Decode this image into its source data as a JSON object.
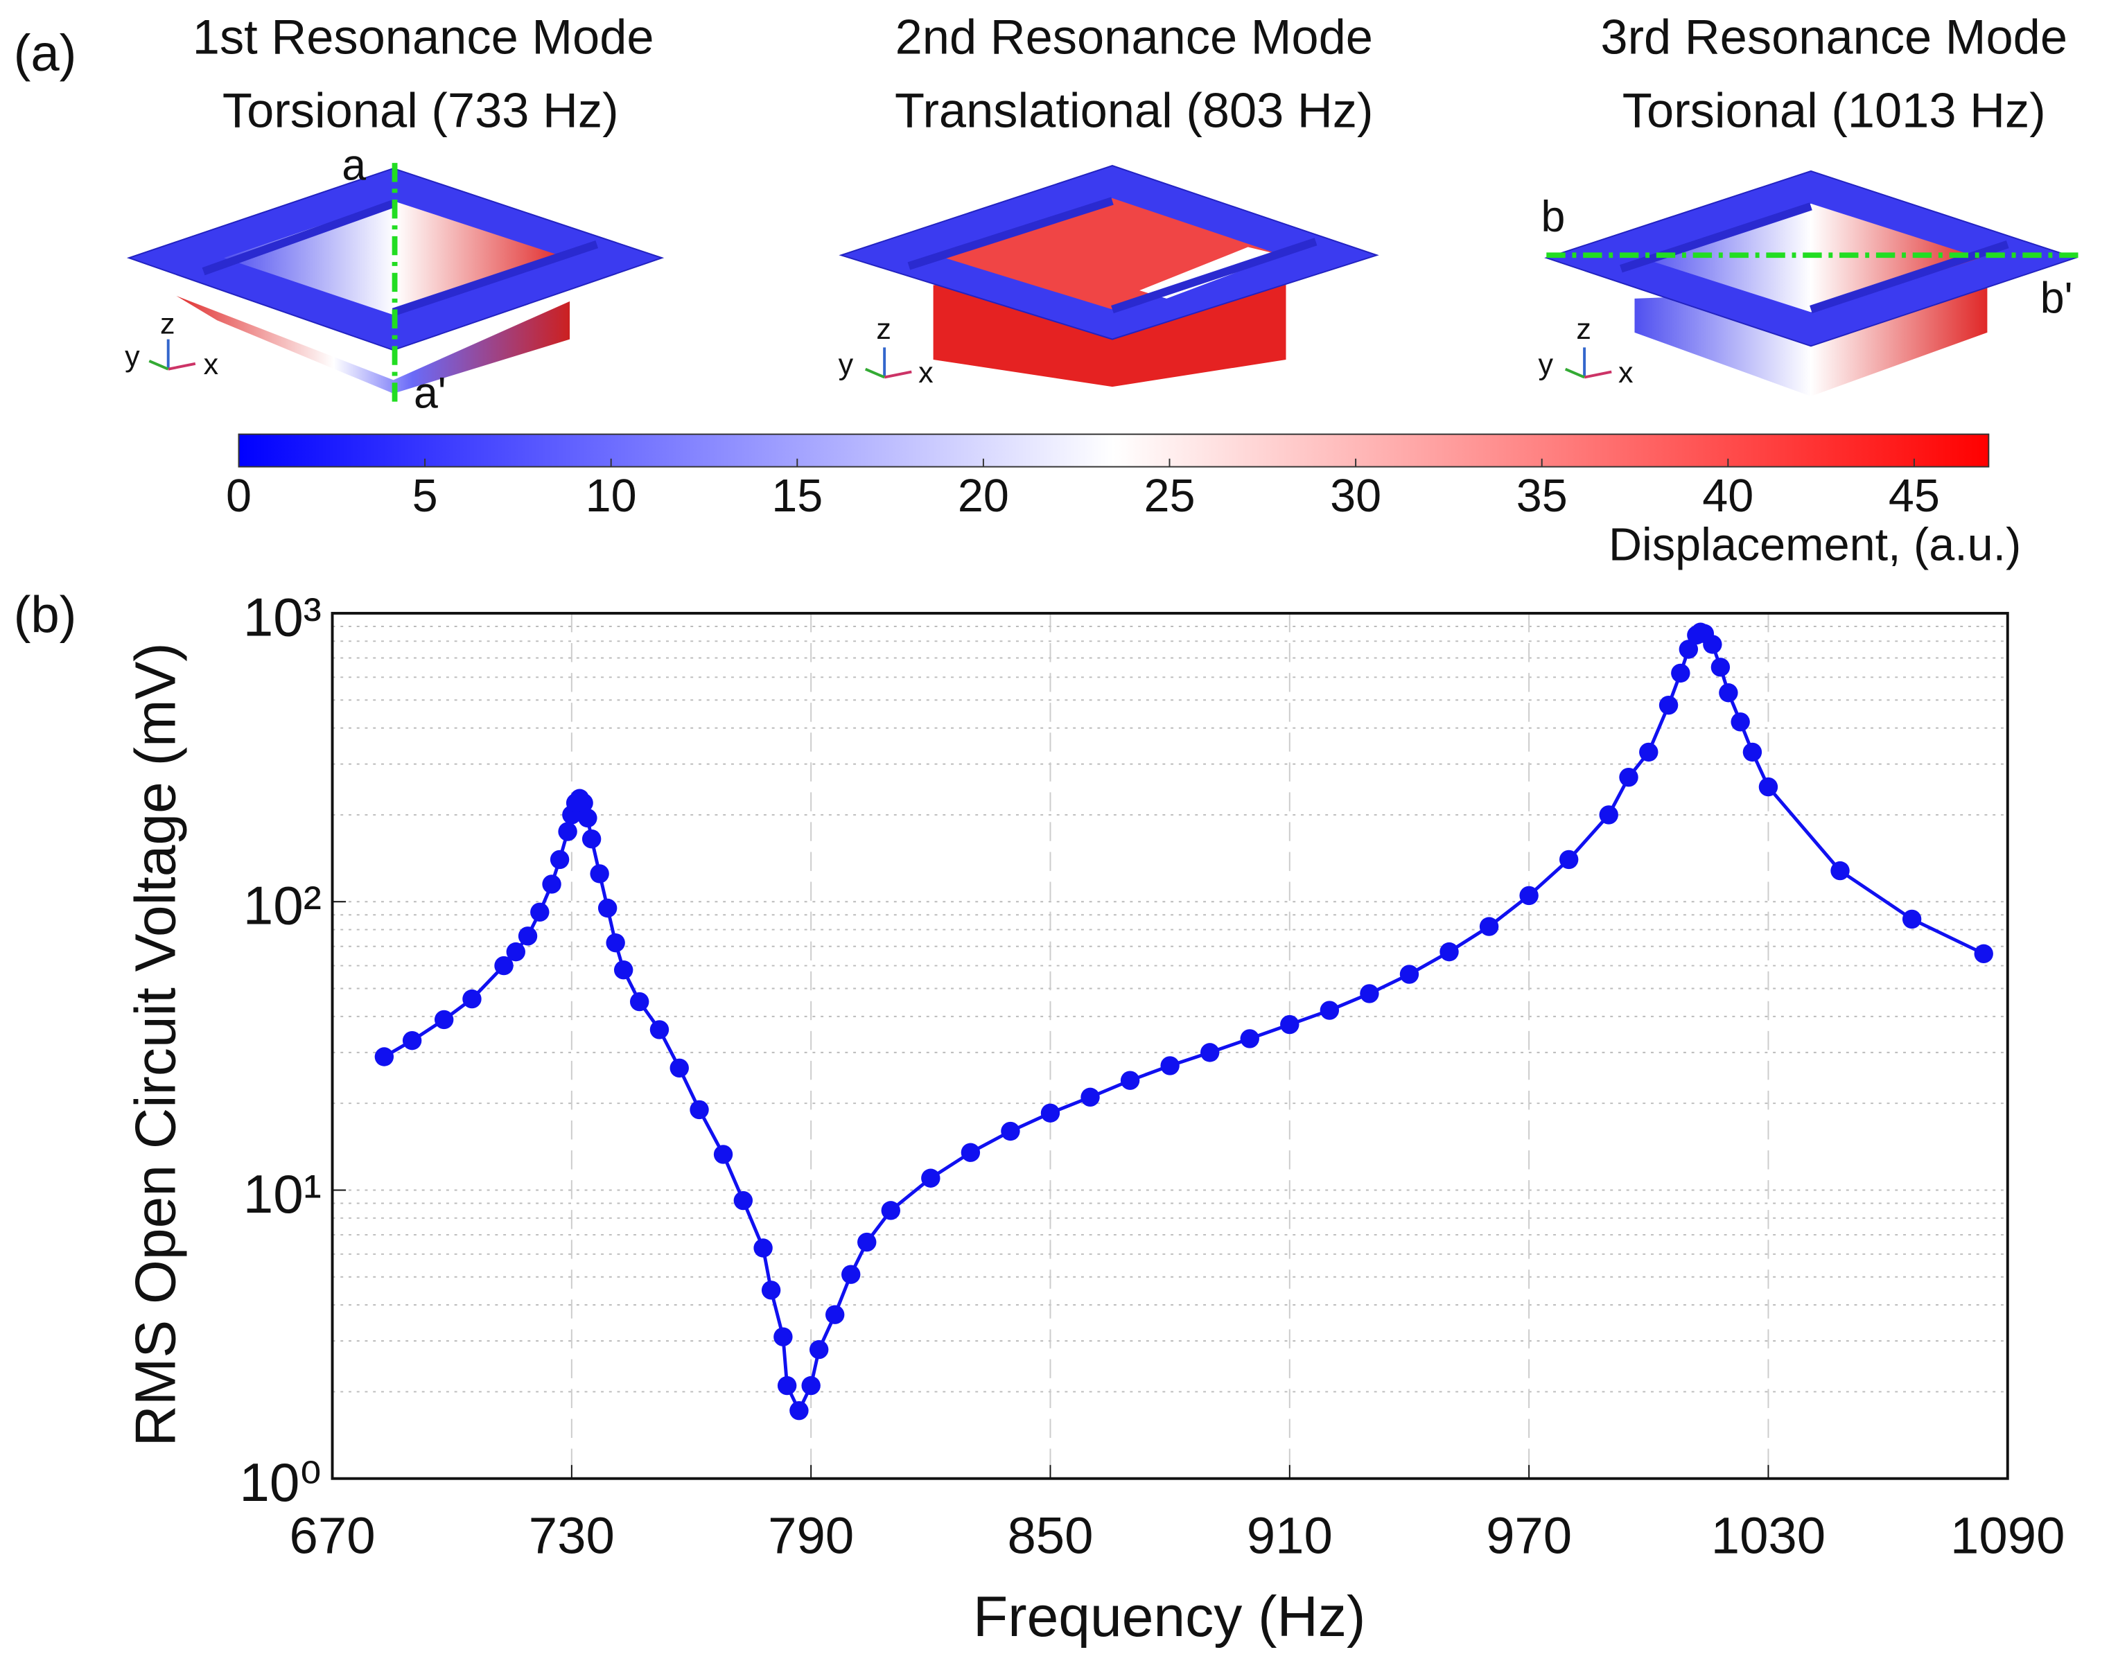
{
  "panel_a": {
    "label": "(a)",
    "modes": [
      {
        "title": "1st Resonance Mode",
        "subtitle": "Torsional (733 Hz)"
      },
      {
        "title": "2nd Resonance Mode",
        "subtitle": "Translational (803 Hz)"
      },
      {
        "title": "3rd Resonance Mode",
        "subtitle": "Torsional (1013 Hz)"
      }
    ],
    "section_labels": [
      "a",
      "a'",
      "b",
      "b'"
    ],
    "axis_triad": [
      "x",
      "y",
      "z"
    ],
    "colorbar": {
      "label": "Displacement, (a.u.)",
      "lim": [
        0,
        47
      ],
      "ticks": [
        0,
        5,
        10,
        15,
        20,
        25,
        30,
        35,
        40,
        45
      ]
    }
  },
  "chart_data": {
    "type": "line",
    "panel_label": "(b)",
    "x_label": "Frequency (Hz)",
    "y_label": "RMS Open Circuit Voltage (mV)",
    "xlim": [
      670,
      1090
    ],
    "xticks": [
      670,
      730,
      790,
      850,
      910,
      970,
      1030,
      1090
    ],
    "ylim": [
      1,
      1000
    ],
    "yticks": [
      {
        "value": 1,
        "label": "10⁰"
      },
      {
        "value": 10,
        "label": "10¹"
      },
      {
        "value": 100,
        "label": "10²"
      },
      {
        "value": 1000,
        "label": "10³"
      }
    ],
    "log_y": true,
    "grid": true,
    "series": [
      {
        "name": "RMS Open Circuit Voltage",
        "color": "#1010f0",
        "x": [
          683,
          690,
          698,
          705,
          713,
          716,
          719,
          722,
          725,
          727,
          729,
          730,
          731,
          732,
          733,
          734,
          735,
          737,
          739,
          741,
          743,
          747,
          752,
          757,
          762,
          768,
          773,
          778,
          780,
          783,
          784,
          787,
          790,
          792,
          796,
          800,
          804,
          810,
          820,
          830,
          840,
          850,
          860,
          870,
          880,
          890,
          900,
          910,
          920,
          930,
          940,
          950,
          960,
          970,
          980,
          990,
          995,
          1000,
          1005,
          1008,
          1010,
          1012,
          1013,
          1014,
          1016,
          1018,
          1020,
          1023,
          1026,
          1030,
          1048,
          1066,
          1084
        ],
        "values": [
          29,
          33,
          39,
          46,
          60,
          67,
          76,
          92,
          115,
          140,
          175,
          200,
          220,
          228,
          220,
          195,
          165,
          125,
          95,
          72,
          58,
          45,
          36,
          26.5,
          19,
          13.3,
          9.2,
          6.3,
          4.5,
          3.1,
          2.1,
          1.72,
          2.1,
          2.8,
          3.7,
          5.1,
          6.6,
          8.5,
          11,
          13.5,
          16,
          18.5,
          21,
          24,
          27,
          30,
          33.5,
          37.5,
          42,
          48,
          56,
          67,
          82,
          105,
          140,
          200,
          270,
          330,
          480,
          620,
          750,
          840,
          860,
          850,
          780,
          650,
          530,
          420,
          330,
          250,
          128,
          87,
          66
        ]
      }
    ]
  }
}
